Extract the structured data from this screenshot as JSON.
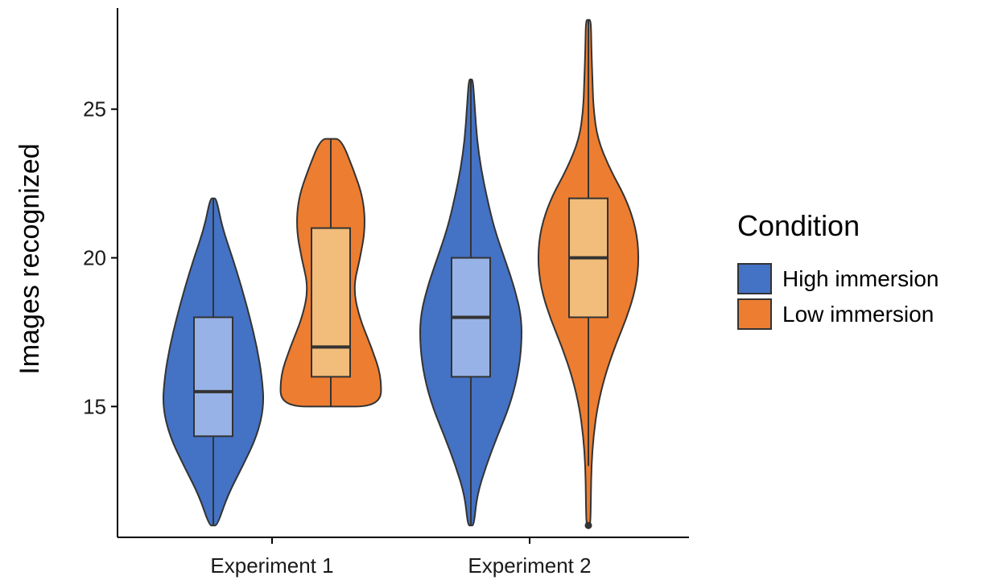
{
  "chart_data": {
    "type": "violin",
    "title": "",
    "xlabel": "",
    "ylabel": "Images recognized",
    "ylim": [
      10.6,
      28.4
    ],
    "yticks": [
      15,
      20,
      25
    ],
    "categories": [
      "Experiment 1",
      "Experiment 2"
    ],
    "grid": false,
    "legend": {
      "title": "Condition",
      "position": "right"
    },
    "colors": {
      "High immersion": {
        "violin": "#4472C4",
        "box": "#97B2E6"
      },
      "Low immersion": {
        "violin": "#ED7D31",
        "box": "#F2BC7A"
      }
    },
    "series": [
      {
        "name": "High immersion",
        "groups": [
          {
            "category": "Experiment 1",
            "min": 11,
            "q1": 14,
            "median": 15.5,
            "q3": 18,
            "max": 22,
            "outliers": [],
            "density": [
              [
                11,
                0.08
              ],
              [
                12,
                0.28
              ],
              [
                13,
                0.58
              ],
              [
                14,
                0.86
              ],
              [
                15,
                1.0
              ],
              [
                16,
                0.96
              ],
              [
                17,
                0.86
              ],
              [
                18,
                0.72
              ],
              [
                19,
                0.56
              ],
              [
                20,
                0.38
              ],
              [
                21,
                0.18
              ],
              [
                22,
                0.06
              ]
            ]
          },
          {
            "category": "Experiment 2",
            "min": 11,
            "q1": 16,
            "median": 18,
            "q3": 20,
            "max": 26,
            "outliers": [],
            "density": [
              [
                11,
                0.06
              ],
              [
                12,
                0.12
              ],
              [
                13,
                0.3
              ],
              [
                14,
                0.52
              ],
              [
                15,
                0.76
              ],
              [
                16,
                0.92
              ],
              [
                17,
                1.0
              ],
              [
                18,
                1.0
              ],
              [
                19,
                0.86
              ],
              [
                20,
                0.66
              ],
              [
                21,
                0.46
              ],
              [
                22,
                0.32
              ],
              [
                23,
                0.2
              ],
              [
                24,
                0.12
              ],
              [
                25,
                0.08
              ],
              [
                26,
                0.04
              ]
            ]
          }
        ]
      },
      {
        "name": "Low immersion",
        "groups": [
          {
            "category": "Experiment 1",
            "min": 15,
            "q1": 16,
            "median": 17,
            "q3": 21,
            "max": 24,
            "outliers": [],
            "density": [
              [
                15,
                0.98
              ],
              [
                16,
                1.0
              ],
              [
                17,
                0.8
              ],
              [
                18,
                0.56
              ],
              [
                19,
                0.44
              ],
              [
                20,
                0.58
              ],
              [
                21,
                0.68
              ],
              [
                22,
                0.64
              ],
              [
                23,
                0.44
              ],
              [
                24,
                0.2
              ]
            ]
          },
          {
            "category": "Experiment 2",
            "min": 13,
            "q1": 18,
            "median": 20,
            "q3": 22,
            "max": 28,
            "outliers": [
              11
            ],
            "density": [
              [
                11,
                0.04
              ],
              [
                12,
                0.05
              ],
              [
                13,
                0.06
              ],
              [
                14,
                0.1
              ],
              [
                15,
                0.18
              ],
              [
                16,
                0.32
              ],
              [
                17,
                0.52
              ],
              [
                18,
                0.76
              ],
              [
                19,
                0.94
              ],
              [
                20,
                1.0
              ],
              [
                21,
                0.94
              ],
              [
                22,
                0.74
              ],
              [
                23,
                0.42
              ],
              [
                24,
                0.18
              ],
              [
                25,
                0.1
              ],
              [
                26,
                0.08
              ],
              [
                27,
                0.06
              ],
              [
                28,
                0.05
              ]
            ]
          }
        ]
      }
    ]
  }
}
